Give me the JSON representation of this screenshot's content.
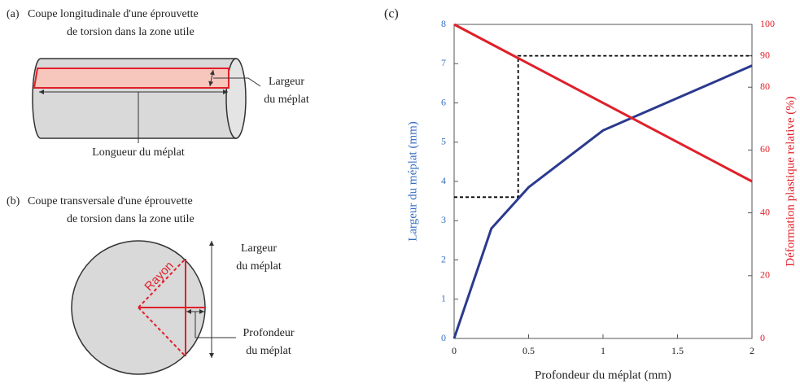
{
  "diagram_a": {
    "label": "(a)",
    "title": [
      "Coupe longitudinale  d'une éprouvette",
      "de torsion dans la zone utile"
    ],
    "width_label": [
      "Largeur",
      "du méplat"
    ],
    "length_label": "Longueur du méplat"
  },
  "diagram_b": {
    "label": "(b)",
    "title": [
      "Coupe transversale d'une éprouvette",
      "de torsion dans la zone utile"
    ],
    "radius_label": "Rayon",
    "width_label": [
      "Largeur",
      "du méplat"
    ],
    "depth_label": [
      "Profondeur",
      "du méplat"
    ]
  },
  "chart_data": {
    "type": "line",
    "label": "(c)",
    "xlabel": "Profondeur du méplat (mm)",
    "ylabel": "Largeur du méplat (mm)",
    "y2label": "Déformation plastique relative (%)",
    "xlim": [
      0,
      2
    ],
    "xticks": [
      0,
      0.5,
      1,
      1.5,
      2
    ],
    "ylim": [
      0,
      8
    ],
    "yticks": [
      0,
      1,
      2,
      3,
      4,
      5,
      6,
      7,
      8
    ],
    "y2lim": [
      0,
      100
    ],
    "y2ticks": [
      0,
      20,
      40,
      60,
      80,
      90,
      100
    ],
    "ycolor": "#3a6fc0",
    "y2color": "#e0202a",
    "series": [
      {
        "name": "Largeur du méplat",
        "color": "#2b3a8f",
        "x": [
          0,
          0.25,
          0.5,
          1,
          2
        ],
        "values": [
          0,
          2.8,
          3.85,
          5.3,
          6.95
        ]
      },
      {
        "name": "Déformation plastique relative",
        "color": "#e0202a",
        "axis": "y2",
        "x": [
          0,
          2
        ],
        "values": [
          100,
          50
        ]
      }
    ],
    "reference_line": {
      "color": "#000000",
      "x": [
        0,
        0.43,
        0.43,
        2
      ],
      "values": [
        3.6,
        3.6,
        7.2,
        7.2
      ]
    }
  }
}
